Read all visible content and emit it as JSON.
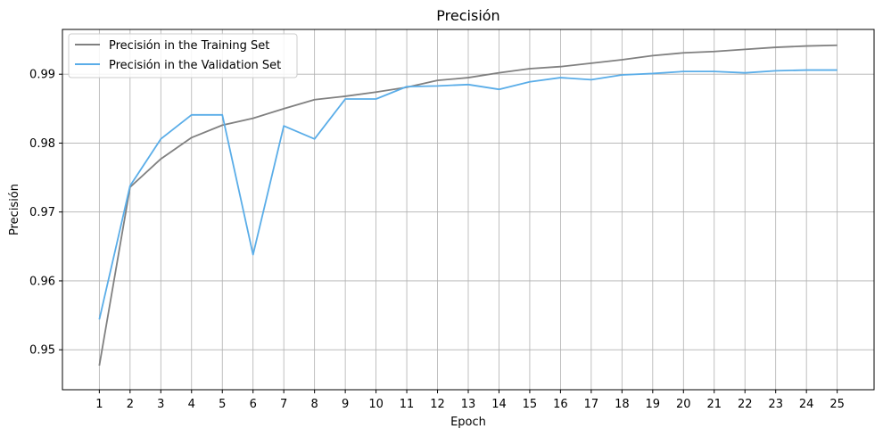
{
  "chart_data": {
    "type": "line",
    "title": "Precisión",
    "xlabel": "Epoch",
    "ylabel": "Precisión",
    "x": [
      1,
      2,
      3,
      4,
      5,
      6,
      7,
      8,
      9,
      10,
      11,
      12,
      13,
      14,
      15,
      16,
      17,
      18,
      19,
      20,
      21,
      22,
      23,
      24,
      25
    ],
    "xlim": [
      -0.2,
      26.2
    ],
    "ylim": [
      0.9442,
      0.9965
    ],
    "yticks": [
      0.95,
      0.96,
      0.97,
      0.98,
      0.99
    ],
    "ytick_labels": [
      "0.95",
      "0.96",
      "0.97",
      "0.98",
      "0.99"
    ],
    "grid": true,
    "legend_position": "top-left",
    "series": [
      {
        "name": "Precisión in the Training Set",
        "color": "#808080",
        "values": [
          0.9477,
          0.9736,
          0.9777,
          0.9808,
          0.9826,
          0.9836,
          0.985,
          0.9863,
          0.9868,
          0.9874,
          0.9881,
          0.9891,
          0.9895,
          0.9902,
          0.9908,
          0.9911,
          0.9916,
          0.9921,
          0.9927,
          0.9931,
          0.9933,
          0.9936,
          0.9939,
          0.9941,
          0.9942
        ]
      },
      {
        "name": "Precisión in the Validation Set",
        "color": "#5aade8",
        "values": [
          0.9544,
          0.9738,
          0.9806,
          0.9841,
          0.9841,
          0.9638,
          0.9825,
          0.9806,
          0.9864,
          0.9864,
          0.9882,
          0.9883,
          0.9885,
          0.9878,
          0.9889,
          0.9895,
          0.9892,
          0.9899,
          0.9901,
          0.9904,
          0.9904,
          0.9902,
          0.9905,
          0.9906,
          0.9906
        ]
      }
    ]
  }
}
